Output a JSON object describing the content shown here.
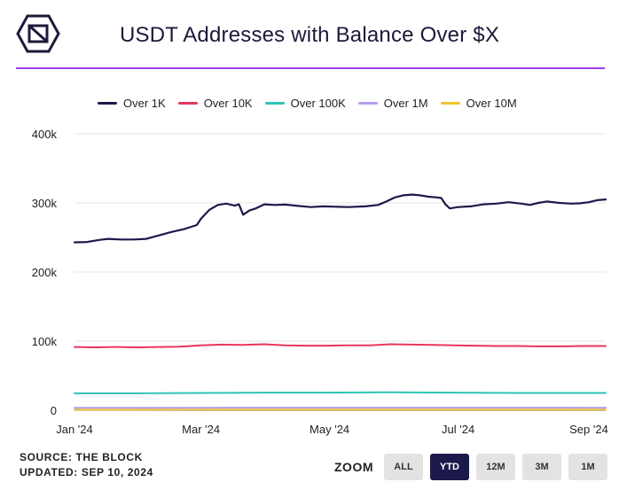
{
  "header": {
    "title": "USDT Addresses with Balance Over $X"
  },
  "footer": {
    "source": "SOURCE: THE BLOCK",
    "updated": "UPDATED: SEP 10, 2024"
  },
  "zoom": {
    "label": "ZOOM",
    "buttons": [
      "ALL",
      "YTD",
      "12M",
      "3M",
      "1M"
    ],
    "active": "YTD"
  },
  "colors": {
    "accent_rule": "#9b3ff0",
    "zoom_active_bg": "#1c1a4a"
  },
  "chart_data": {
    "type": "line",
    "title": "USDT Addresses with Balance Over $X",
    "xlabel": "",
    "ylabel": "",
    "x_range": [
      "2024-01-01",
      "2024-09-10"
    ],
    "x_ticks": [
      {
        "label": "Jan '24",
        "day": 0
      },
      {
        "label": "Mar '24",
        "day": 60
      },
      {
        "label": "May '24",
        "day": 121
      },
      {
        "label": "Jul '24",
        "day": 182
      },
      {
        "label": "Sep '24",
        "day": 244
      }
    ],
    "ylim": [
      0,
      400000
    ],
    "y_ticks": [
      {
        "label": "0",
        "value": 0
      },
      {
        "label": "100k",
        "value": 100000
      },
      {
        "label": "200k",
        "value": 200000
      },
      {
        "label": "300k",
        "value": 300000
      },
      {
        "label": "400k",
        "value": 400000
      }
    ],
    "grid": true,
    "legend_position": "top",
    "series": [
      {
        "name": "Over 1K",
        "color": "#1c1a4a",
        "points": [
          [
            0,
            243000
          ],
          [
            6,
            243500
          ],
          [
            12,
            246500
          ],
          [
            16,
            248000
          ],
          [
            22,
            247000
          ],
          [
            28,
            247000
          ],
          [
            34,
            248000
          ],
          [
            40,
            253000
          ],
          [
            46,
            258000
          ],
          [
            52,
            262000
          ],
          [
            56,
            266000
          ],
          [
            58,
            268000
          ],
          [
            60,
            277000
          ],
          [
            64,
            290000
          ],
          [
            68,
            297000
          ],
          [
            72,
            299000
          ],
          [
            76,
            296000
          ],
          [
            78,
            298000
          ],
          [
            80,
            283000
          ],
          [
            83,
            289000
          ],
          [
            86,
            292000
          ],
          [
            90,
            298000
          ],
          [
            95,
            297000
          ],
          [
            100,
            297500
          ],
          [
            105,
            296000
          ],
          [
            112,
            294000
          ],
          [
            118,
            295000
          ],
          [
            124,
            294500
          ],
          [
            130,
            294000
          ],
          [
            138,
            295000
          ],
          [
            144,
            297000
          ],
          [
            148,
            302000
          ],
          [
            152,
            308000
          ],
          [
            156,
            311000
          ],
          [
            160,
            312000
          ],
          [
            164,
            311000
          ],
          [
            168,
            309000
          ],
          [
            172,
            308000
          ],
          [
            174,
            307000
          ],
          [
            176,
            298000
          ],
          [
            178,
            292000
          ],
          [
            182,
            294000
          ],
          [
            188,
            295000
          ],
          [
            194,
            298000
          ],
          [
            200,
            299000
          ],
          [
            206,
            301000
          ],
          [
            212,
            299000
          ],
          [
            216,
            297000
          ],
          [
            220,
            300000
          ],
          [
            224,
            302000
          ],
          [
            230,
            300000
          ],
          [
            236,
            299000
          ],
          [
            240,
            299500
          ],
          [
            244,
            301000
          ],
          [
            248,
            304000
          ],
          [
            252,
            305000
          ]
        ]
      },
      {
        "name": "Over 10K",
        "color": "#e8365d",
        "points": [
          [
            0,
            91500
          ],
          [
            10,
            91000
          ],
          [
            20,
            91500
          ],
          [
            30,
            91000
          ],
          [
            40,
            91500
          ],
          [
            50,
            92000
          ],
          [
            60,
            94000
          ],
          [
            70,
            95000
          ],
          [
            80,
            94500
          ],
          [
            90,
            95500
          ],
          [
            100,
            94000
          ],
          [
            110,
            93500
          ],
          [
            120,
            93500
          ],
          [
            130,
            94000
          ],
          [
            140,
            94000
          ],
          [
            150,
            95500
          ],
          [
            160,
            95000
          ],
          [
            170,
            94500
          ],
          [
            180,
            94000
          ],
          [
            190,
            93500
          ],
          [
            200,
            93000
          ],
          [
            210,
            93000
          ],
          [
            220,
            92500
          ],
          [
            230,
            92500
          ],
          [
            240,
            93000
          ],
          [
            252,
            93000
          ]
        ]
      },
      {
        "name": "Over 100K",
        "color": "#2ec4b6",
        "points": [
          [
            0,
            24500
          ],
          [
            30,
            24500
          ],
          [
            60,
            25000
          ],
          [
            90,
            25500
          ],
          [
            120,
            25500
          ],
          [
            150,
            26000
          ],
          [
            180,
            25500
          ],
          [
            210,
            25000
          ],
          [
            240,
            25000
          ],
          [
            252,
            25000
          ]
        ]
      },
      {
        "name": "Over 1M",
        "color": "#b59ce8",
        "points": [
          [
            0,
            3500
          ],
          [
            60,
            3600
          ],
          [
            120,
            3700
          ],
          [
            180,
            3700
          ],
          [
            252,
            3600
          ]
        ]
      },
      {
        "name": "Over 10M",
        "color": "#f2c230",
        "points": [
          [
            0,
            800
          ],
          [
            60,
            850
          ],
          [
            120,
            850
          ],
          [
            180,
            850
          ],
          [
            252,
            850
          ]
        ]
      }
    ]
  }
}
